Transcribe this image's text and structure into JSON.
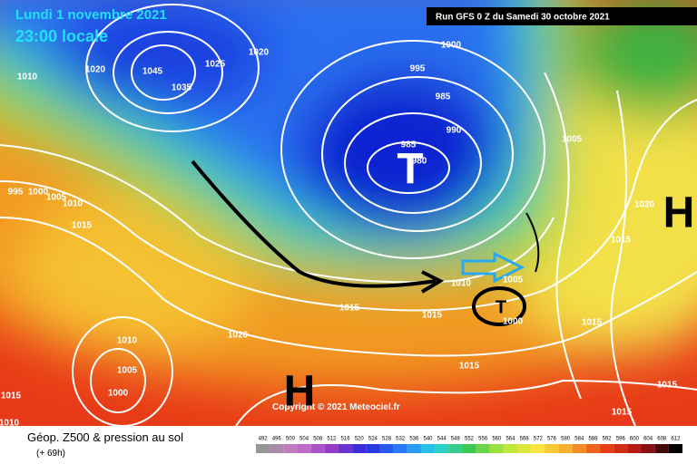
{
  "header": {
    "date": "Lundi 1 novembre 2021",
    "time": "23:00 locale",
    "run": "Run GFS 0 Z du Samedi 30 octobre 2021"
  },
  "map": {
    "centers": [
      "T",
      "H",
      "H",
      "T"
    ],
    "isobar_labels": [
      "1010",
      "1020",
      "1045",
      "1035",
      "1025",
      "1020",
      "1000",
      "995",
      "985",
      "990",
      "985",
      "980",
      "1005",
      "995",
      "1000",
      "1005",
      "1010",
      "1015",
      "1020",
      "1015",
      "1005",
      "1010",
      "1015",
      "1015",
      "1000",
      "1015",
      "1020",
      "1010",
      "1005",
      "1000",
      "1015",
      "1015",
      "1010",
      "1015",
      "1015"
    ],
    "copyright": "Copyright © 2021 Meteociel.fr"
  },
  "footer": {
    "title": "Géop. Z500 & pression au sol",
    "lead": "(+ 69h)",
    "scale": [
      "492",
      "496",
      "500",
      "504",
      "508",
      "512",
      "516",
      "520",
      "524",
      "528",
      "532",
      "536",
      "540",
      "544",
      "548",
      "552",
      "556",
      "560",
      "564",
      "568",
      "572",
      "576",
      "580",
      "584",
      "588",
      "592",
      "596",
      "600",
      "604",
      "608",
      "612"
    ]
  }
}
